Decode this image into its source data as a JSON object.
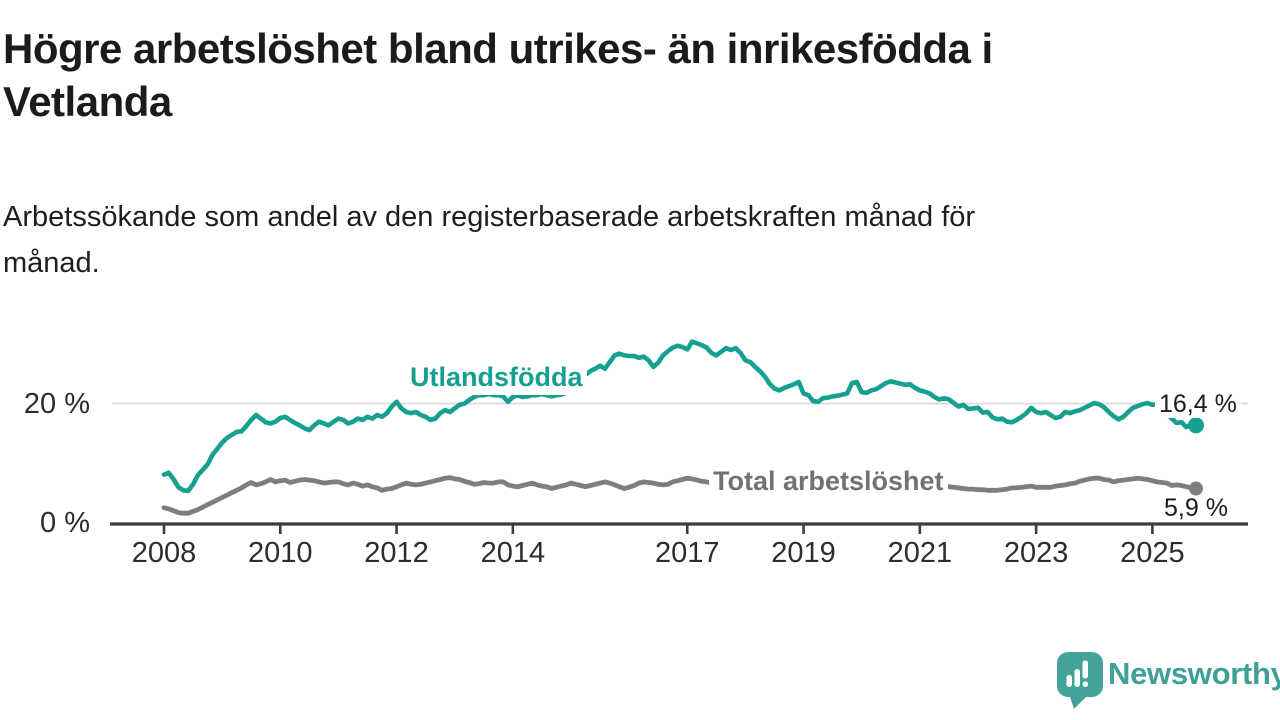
{
  "header": {
    "title_lines": [
      "Högre arbetslöshet bland utrikes- än inrikesfödda i",
      "Vetlanda"
    ],
    "subtitle_lines": [
      "Arbetssökande som andel av den registerbaserade arbetskraften månad för",
      "månad."
    ]
  },
  "chart": {
    "y_labels": [
      {
        "text": "20 %",
        "pct": 20
      },
      {
        "text": "0 %",
        "pct": 0
      }
    ]
  },
  "footer": {
    "brand": "Newsworthy",
    "brand_color": "#3fa096",
    "logo_color": "#44a399"
  },
  "chart_data": {
    "type": "line",
    "unit": "%",
    "x_start": "2008-01",
    "x_end": "2025-10",
    "x_interval": "monthly",
    "x_tick_labels": [
      2008,
      2010,
      2012,
      2014,
      2017,
      2019,
      2021,
      2023,
      2025
    ],
    "ylim": [
      0,
      31
    ],
    "grid": "horizontal-only",
    "gridlines_pct": [
      20
    ],
    "legend_position": "inline-labels",
    "series": [
      {
        "name": "Utlandsfödda",
        "color": "#16a08f",
        "end_label": "16,4 %",
        "end_value": 16.4,
        "values": [
          8.2,
          8.5,
          7.4,
          6.1,
          5.6,
          5.5,
          6.6,
          8.1,
          9.0,
          9.9,
          11.5,
          12.5,
          13.5,
          14.3,
          14.8,
          15.3,
          15.4,
          16.3,
          17.3,
          18.1,
          17.5,
          16.9,
          16.7,
          17.0,
          17.6,
          17.8,
          17.3,
          16.8,
          16.4,
          15.9,
          15.6,
          16.4,
          17.0,
          16.7,
          16.4,
          17.0,
          17.5,
          17.3,
          16.7,
          17.0,
          17.5,
          17.3,
          17.8,
          17.5,
          18.1,
          17.8,
          18.4,
          19.5,
          20.3,
          19.2,
          18.6,
          18.4,
          18.6,
          18.1,
          17.8,
          17.3,
          17.5,
          18.4,
          18.9,
          18.6,
          19.2,
          19.8,
          20.0,
          20.6,
          21.1,
          21.4,
          21.4,
          21.6,
          21.4,
          21.4,
          21.2,
          20.3,
          21.1,
          21.4,
          21.1,
          21.2,
          21.4,
          21.4,
          21.6,
          21.4,
          21.2,
          21.4,
          21.5,
          21.8,
          22.3,
          23.2,
          24.0,
          24.8,
          25.4,
          25.8,
          26.3,
          25.8,
          26.9,
          28.0,
          28.3,
          28.0,
          27.9,
          27.9,
          27.6,
          27.8,
          27.2,
          26.1,
          26.8,
          28.0,
          28.7,
          29.3,
          29.6,
          29.4,
          29.0,
          30.3,
          30.0,
          29.7,
          29.3,
          28.4,
          28.0,
          28.6,
          29.2,
          28.9,
          29.2,
          28.4,
          27.2,
          26.9,
          26.1,
          25.4,
          24.5,
          23.3,
          22.5,
          22.2,
          22.6,
          22.9,
          23.2,
          23.6,
          21.7,
          21.4,
          20.4,
          20.3,
          20.9,
          21.0,
          21.2,
          21.3,
          21.5,
          21.7,
          23.4,
          23.6,
          21.9,
          21.8,
          22.2,
          22.4,
          22.9,
          23.4,
          23.7,
          23.5,
          23.3,
          23.1,
          23.2,
          22.6,
          22.2,
          22.0,
          21.7,
          21.1,
          20.7,
          20.9,
          20.7,
          20.1,
          19.5,
          19.8,
          19.1,
          19.2,
          19.3,
          18.5,
          18.6,
          17.7,
          17.4,
          17.5,
          17.0,
          16.9,
          17.3,
          17.8,
          18.4,
          19.3,
          18.6,
          18.4,
          18.6,
          18.1,
          17.6,
          17.8,
          18.6,
          18.4,
          18.7,
          18.9,
          19.3,
          19.7,
          20.1,
          19.9,
          19.4,
          18.6,
          17.9,
          17.4,
          17.8,
          18.6,
          19.3,
          19.6,
          19.9,
          20.1,
          19.8,
          19.9,
          19.3,
          18.3,
          17.5,
          16.8,
          16.9,
          16.1,
          16.6,
          16.4
        ]
      },
      {
        "name": "Total arbetslöshet",
        "color": "#7e7e82",
        "end_label": "5,9 %",
        "end_value": 5.9,
        "values": [
          2.7,
          2.5,
          2.2,
          1.9,
          1.8,
          1.8,
          2.1,
          2.4,
          2.8,
          3.2,
          3.6,
          4.0,
          4.4,
          4.8,
          5.2,
          5.6,
          6.0,
          6.5,
          6.9,
          6.5,
          6.7,
          7.0,
          7.4,
          7.0,
          7.2,
          7.3,
          6.9,
          7.1,
          7.3,
          7.4,
          7.3,
          7.2,
          7.0,
          6.8,
          6.9,
          7.0,
          7.0,
          6.7,
          6.5,
          6.8,
          6.6,
          6.3,
          6.5,
          6.2,
          6.0,
          5.6,
          5.8,
          5.9,
          6.2,
          6.5,
          6.8,
          6.6,
          6.5,
          6.6,
          6.8,
          7.0,
          7.2,
          7.4,
          7.6,
          7.7,
          7.5,
          7.4,
          7.1,
          6.9,
          6.6,
          6.7,
          6.9,
          6.8,
          6.8,
          7.0,
          7.0,
          6.5,
          6.3,
          6.2,
          6.4,
          6.6,
          6.8,
          6.5,
          6.3,
          6.2,
          5.9,
          6.1,
          6.3,
          6.5,
          6.8,
          6.6,
          6.4,
          6.2,
          6.4,
          6.6,
          6.8,
          7.0,
          6.8,
          6.5,
          6.2,
          5.9,
          6.1,
          6.4,
          6.8,
          7.0,
          6.9,
          6.8,
          6.6,
          6.5,
          6.6,
          7.0,
          7.2,
          7.4,
          7.6,
          7.5,
          7.3,
          7.1,
          7.0,
          6.8,
          6.7,
          6.5,
          6.4,
          6.3,
          6.2,
          6.1,
          6.0,
          6.0,
          5.9,
          5.9,
          5.8,
          5.8,
          5.7,
          5.7,
          5.6,
          5.6,
          5.6,
          5.5,
          5.5,
          5.5,
          5.5,
          5.5,
          5.6,
          5.6,
          5.6,
          5.7,
          5.7,
          5.7,
          5.8,
          5.8,
          5.9,
          6.1,
          6.5,
          6.9,
          7.2,
          7.4,
          7.4,
          7.3,
          7.2,
          7.1,
          7.0,
          6.9,
          6.8,
          6.7,
          6.6,
          6.5,
          6.4,
          6.3,
          6.2,
          6.1,
          6.0,
          5.9,
          5.8,
          5.8,
          5.7,
          5.7,
          5.6,
          5.6,
          5.6,
          5.7,
          5.8,
          6.0,
          6.0,
          6.1,
          6.2,
          6.3,
          6.1,
          6.1,
          6.1,
          6.1,
          6.3,
          6.4,
          6.5,
          6.7,
          6.8,
          7.1,
          7.3,
          7.5,
          7.6,
          7.6,
          7.4,
          7.3,
          7.0,
          7.2,
          7.3,
          7.4,
          7.5,
          7.6,
          7.5,
          7.4,
          7.2,
          7.0,
          6.9,
          6.8,
          6.4,
          6.5,
          6.4,
          6.2,
          6.0,
          5.9
        ]
      }
    ]
  }
}
